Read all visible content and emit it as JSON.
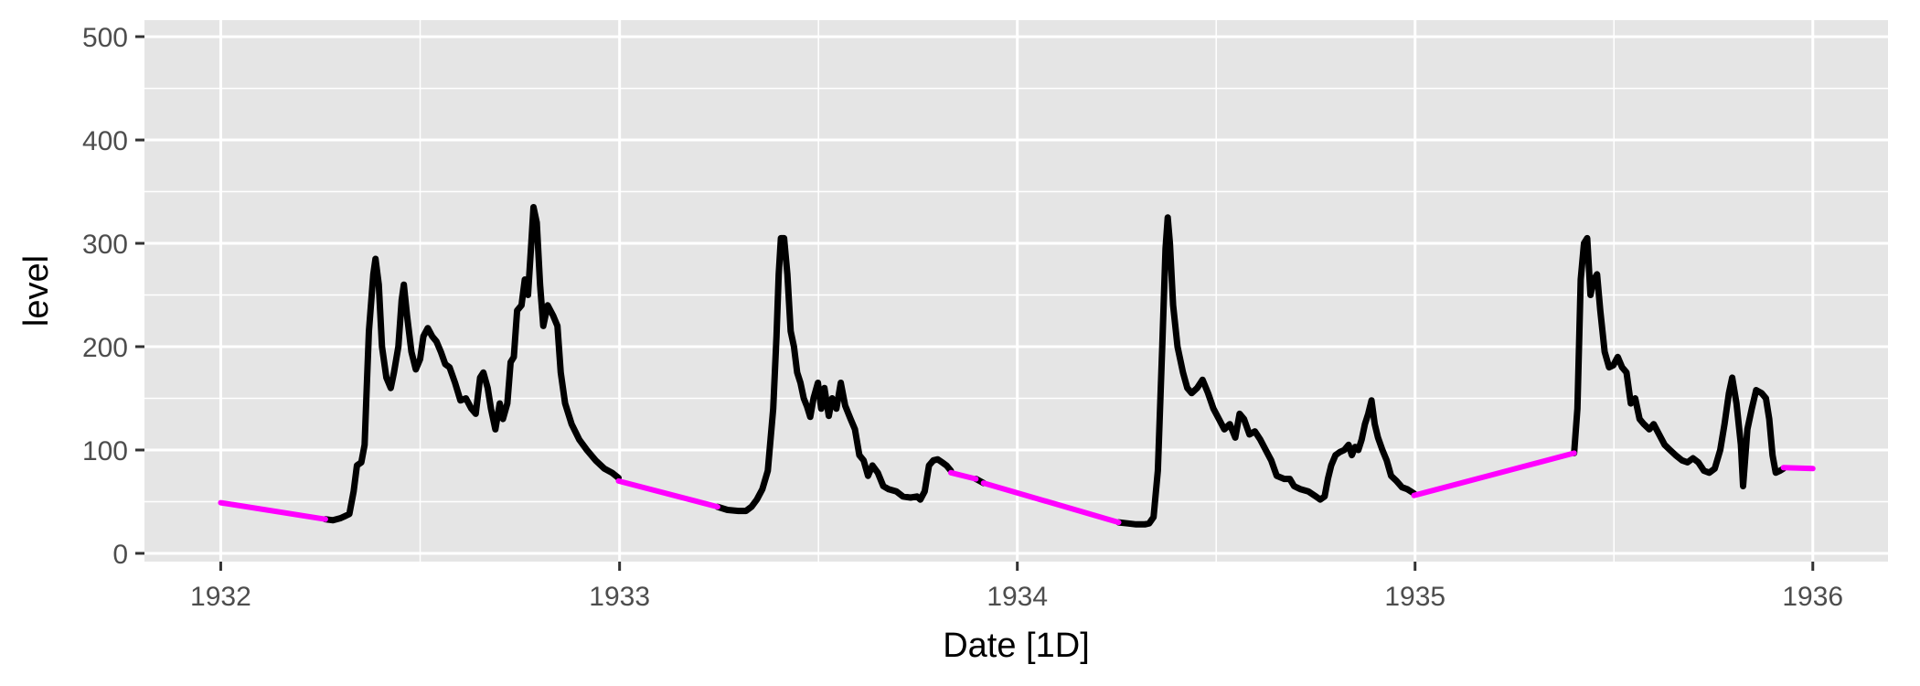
{
  "chart_data": {
    "type": "line",
    "title": "",
    "xlabel": "Date [1D]",
    "ylabel": "level",
    "x_range": [
      "1931-10-23",
      "1936-03-10"
    ],
    "ylim": [
      -8,
      516
    ],
    "x_ticks": [
      {
        "date": "1932-01-01",
        "label": "1932"
      },
      {
        "date": "1933-01-01",
        "label": "1933"
      },
      {
        "date": "1934-01-01",
        "label": "1934"
      },
      {
        "date": "1935-01-01",
        "label": "1935"
      },
      {
        "date": "1936-01-01",
        "label": "1936"
      }
    ],
    "y_ticks": [
      0,
      100,
      200,
      300,
      400,
      500
    ],
    "grid": true,
    "legend": "none",
    "background": "#e5e5e5",
    "grid_color": "#ffffff",
    "series": [
      {
        "color": "#000000",
        "line_width_note": "thick",
        "segments": [
          [
            [
              "1932-04-06",
              33
            ],
            [
              "1932-04-13",
              32
            ],
            [
              "1932-04-20",
              34
            ],
            [
              "1932-04-24",
              36
            ],
            [
              "1932-04-28",
              38
            ],
            [
              "1932-05-02",
              60
            ],
            [
              "1932-05-05",
              85
            ],
            [
              "1932-05-09",
              88
            ],
            [
              "1932-05-12",
              105
            ],
            [
              "1932-05-14",
              160
            ],
            [
              "1932-05-16",
              215
            ],
            [
              "1932-05-20",
              270
            ],
            [
              "1932-05-22",
              285
            ],
            [
              "1932-05-25",
              260
            ],
            [
              "1932-05-28",
              200
            ],
            [
              "1932-06-01",
              170
            ],
            [
              "1932-06-05",
              160
            ],
            [
              "1932-06-08",
              175
            ],
            [
              "1932-06-12",
              200
            ],
            [
              "1932-06-15",
              245
            ],
            [
              "1932-06-17",
              260
            ],
            [
              "1932-06-20",
              230
            ],
            [
              "1932-06-24",
              195
            ],
            [
              "1932-06-28",
              178
            ],
            [
              "1932-07-02",
              188
            ],
            [
              "1932-07-05",
              210
            ],
            [
              "1932-07-09",
              218
            ],
            [
              "1932-07-13",
              210
            ],
            [
              "1932-07-17",
              205
            ],
            [
              "1932-07-21",
              195
            ],
            [
              "1932-07-25",
              183
            ],
            [
              "1932-07-29",
              180
            ],
            [
              "1932-08-03",
              165
            ],
            [
              "1932-08-08",
              148
            ],
            [
              "1932-08-13",
              150
            ],
            [
              "1932-08-18",
              140
            ],
            [
              "1932-08-22",
              135
            ],
            [
              "1932-08-26",
              170
            ],
            [
              "1932-08-29",
              175
            ],
            [
              "1932-09-02",
              160
            ],
            [
              "1932-09-05",
              140
            ],
            [
              "1932-09-09",
              120
            ],
            [
              "1932-09-13",
              145
            ],
            [
              "1932-09-16",
              130
            ],
            [
              "1932-09-20",
              145
            ],
            [
              "1932-09-23",
              185
            ],
            [
              "1932-09-26",
              190
            ],
            [
              "1932-09-29",
              235
            ],
            [
              "1932-10-03",
              240
            ],
            [
              "1932-10-06",
              265
            ],
            [
              "1932-10-09",
              250
            ],
            [
              "1932-10-12",
              300
            ],
            [
              "1932-10-14",
              335
            ],
            [
              "1932-10-17",
              320
            ],
            [
              "1932-10-20",
              260
            ],
            [
              "1932-10-23",
              220
            ],
            [
              "1932-10-27",
              240
            ],
            [
              "1932-11-01",
              230
            ],
            [
              "1932-11-05",
              220
            ],
            [
              "1932-11-08",
              175
            ],
            [
              "1932-11-12",
              145
            ],
            [
              "1932-11-18",
              125
            ],
            [
              "1932-11-25",
              110
            ],
            [
              "1932-12-02",
              100
            ],
            [
              "1932-12-10",
              90
            ],
            [
              "1932-12-18",
              82
            ],
            [
              "1932-12-25",
              78
            ],
            [
              "1932-12-31",
              73
            ]
          ],
          [
            [
              "1933-04-01",
              45
            ],
            [
              "1933-04-10",
              42
            ],
            [
              "1933-04-20",
              41
            ],
            [
              "1933-04-27",
              41
            ],
            [
              "1933-05-02",
              45
            ],
            [
              "1933-05-07",
              52
            ],
            [
              "1933-05-12",
              62
            ],
            [
              "1933-05-17",
              80
            ],
            [
              "1933-05-22",
              140
            ],
            [
              "1933-05-25",
              210
            ],
            [
              "1933-05-27",
              270
            ],
            [
              "1933-05-29",
              305
            ],
            [
              "1933-06-01",
              305
            ],
            [
              "1933-06-04",
              270
            ],
            [
              "1933-06-07",
              215
            ],
            [
              "1933-06-10",
              200
            ],
            [
              "1933-06-13",
              175
            ],
            [
              "1933-06-16",
              165
            ],
            [
              "1933-06-19",
              150
            ],
            [
              "1933-06-22",
              142
            ],
            [
              "1933-06-25",
              132
            ],
            [
              "1933-06-28",
              150
            ],
            [
              "1933-07-02",
              165
            ],
            [
              "1933-07-05",
              140
            ],
            [
              "1933-07-08",
              160
            ],
            [
              "1933-07-12",
              133
            ],
            [
              "1933-07-15",
              150
            ],
            [
              "1933-07-19",
              140
            ],
            [
              "1933-07-23",
              165
            ],
            [
              "1933-07-27",
              143
            ],
            [
              "1933-08-01",
              130
            ],
            [
              "1933-08-05",
              120
            ],
            [
              "1933-08-09",
              95
            ],
            [
              "1933-08-13",
              90
            ],
            [
              "1933-08-17",
              75
            ],
            [
              "1933-08-21",
              85
            ],
            [
              "1933-08-26",
              78
            ],
            [
              "1933-08-31",
              65
            ],
            [
              "1933-09-05",
              62
            ],
            [
              "1933-09-12",
              60
            ],
            [
              "1933-09-18",
              55
            ],
            [
              "1933-09-25",
              54
            ],
            [
              "1933-10-01",
              55
            ],
            [
              "1933-10-04",
              52
            ],
            [
              "1933-10-08",
              60
            ],
            [
              "1933-10-12",
              85
            ],
            [
              "1933-10-16",
              90
            ],
            [
              "1933-10-20",
              91
            ],
            [
              "1933-10-24",
              88
            ],
            [
              "1933-10-28",
              85
            ],
            [
              "1933-11-01",
              80
            ]
          ],
          [
            [
              "1933-11-24",
              72
            ],
            [
              "1933-12-01",
              68
            ]
          ],
          [
            [
              "1934-04-04",
              30
            ],
            [
              "1934-04-12",
              29
            ],
            [
              "1934-04-20",
              28
            ],
            [
              "1934-04-28",
              28
            ],
            [
              "1934-05-02",
              29
            ],
            [
              "1934-05-06",
              35
            ],
            [
              "1934-05-10",
              80
            ],
            [
              "1934-05-14",
              200
            ],
            [
              "1934-05-17",
              295
            ],
            [
              "1934-05-19",
              325
            ],
            [
              "1934-05-21",
              300
            ],
            [
              "1934-05-24",
              240
            ],
            [
              "1934-05-28",
              200
            ],
            [
              "1934-06-02",
              175
            ],
            [
              "1934-06-06",
              160
            ],
            [
              "1934-06-10",
              155
            ],
            [
              "1934-06-15",
              160
            ],
            [
              "1934-06-20",
              168
            ],
            [
              "1934-06-25",
              155
            ],
            [
              "1934-06-30",
              140
            ],
            [
              "1934-07-05",
              130
            ],
            [
              "1934-07-10",
              120
            ],
            [
              "1934-07-15",
              125
            ],
            [
              "1934-07-20",
              112
            ],
            [
              "1934-07-24",
              135
            ],
            [
              "1934-07-28",
              130
            ],
            [
              "1934-08-02",
              115
            ],
            [
              "1934-08-07",
              118
            ],
            [
              "1934-08-12",
              110
            ],
            [
              "1934-08-17",
              100
            ],
            [
              "1934-08-22",
              90
            ],
            [
              "1934-08-27",
              75
            ],
            [
              "1934-09-03",
              72
            ],
            [
              "1934-09-08",
              72
            ],
            [
              "1934-09-12",
              65
            ],
            [
              "1934-09-18",
              62
            ],
            [
              "1934-09-25",
              60
            ],
            [
              "1934-10-02",
              55
            ],
            [
              "1934-10-06",
              52
            ],
            [
              "1934-10-10",
              55
            ],
            [
              "1934-10-13",
              72
            ],
            [
              "1934-10-16",
              85
            ],
            [
              "1934-10-20",
              95
            ],
            [
              "1934-10-24",
              98
            ],
            [
              "1934-10-28",
              100
            ],
            [
              "1934-11-01",
              105
            ],
            [
              "1934-11-04",
              95
            ],
            [
              "1934-11-07",
              103
            ],
            [
              "1934-11-10",
              100
            ],
            [
              "1934-11-13",
              110
            ],
            [
              "1934-11-16",
              125
            ],
            [
              "1934-11-19",
              135
            ],
            [
              "1934-11-22",
              148
            ],
            [
              "1934-11-25",
              125
            ],
            [
              "1934-11-28",
              112
            ],
            [
              "1934-12-02",
              100
            ],
            [
              "1934-12-06",
              90
            ],
            [
              "1934-12-10",
              75
            ],
            [
              "1934-12-15",
              70
            ],
            [
              "1934-12-20",
              64
            ],
            [
              "1934-12-25",
              62
            ],
            [
              "1934-12-31",
              58
            ]
          ],
          [
            [
              "1935-05-27",
              97
            ],
            [
              "1935-05-30",
              140
            ],
            [
              "1935-06-02",
              265
            ],
            [
              "1935-06-05",
              300
            ],
            [
              "1935-06-08",
              305
            ],
            [
              "1935-06-11",
              250
            ],
            [
              "1935-06-14",
              265
            ],
            [
              "1935-06-17",
              270
            ],
            [
              "1935-06-20",
              235
            ],
            [
              "1935-06-24",
              195
            ],
            [
              "1935-06-28",
              180
            ],
            [
              "1935-07-02",
              182
            ],
            [
              "1935-07-06",
              190
            ],
            [
              "1935-07-10",
              180
            ],
            [
              "1935-07-14",
              175
            ],
            [
              "1935-07-18",
              145
            ],
            [
              "1935-07-22",
              150
            ],
            [
              "1935-07-26",
              130
            ],
            [
              "1935-07-30",
              125
            ],
            [
              "1935-08-04",
              120
            ],
            [
              "1935-08-08",
              125
            ],
            [
              "1935-08-13",
              115
            ],
            [
              "1935-08-18",
              105
            ],
            [
              "1935-08-23",
              100
            ],
            [
              "1935-08-28",
              95
            ],
            [
              "1935-09-03",
              90
            ],
            [
              "1935-09-08",
              88
            ],
            [
              "1935-09-13",
              92
            ],
            [
              "1935-09-18",
              88
            ],
            [
              "1935-09-23",
              80
            ],
            [
              "1935-09-28",
              78
            ],
            [
              "1935-10-03",
              82
            ],
            [
              "1935-10-08",
              100
            ],
            [
              "1935-10-12",
              125
            ],
            [
              "1935-10-16",
              155
            ],
            [
              "1935-10-19",
              170
            ],
            [
              "1935-10-23",
              145
            ],
            [
              "1935-10-27",
              105
            ],
            [
              "1935-10-29",
              65
            ],
            [
              "1935-11-02",
              120
            ],
            [
              "1935-11-06",
              140
            ],
            [
              "1935-11-10",
              158
            ],
            [
              "1935-11-15",
              155
            ],
            [
              "1935-11-19",
              150
            ],
            [
              "1935-11-22",
              130
            ],
            [
              "1935-11-25",
              95
            ],
            [
              "1935-11-28",
              78
            ],
            [
              "1935-12-02",
              80
            ],
            [
              "1935-12-05",
              82
            ]
          ]
        ]
      },
      {
        "color": "#ff00ff",
        "segments": [
          [
            [
              "1932-01-01",
              49
            ],
            [
              "1932-04-06",
              33
            ]
          ],
          [
            [
              "1932-12-31",
              70
            ],
            [
              "1933-04-01",
              45
            ]
          ],
          [
            [
              "1933-11-01",
              78
            ],
            [
              "1933-11-24",
              72
            ]
          ],
          [
            [
              "1933-12-01",
              68
            ],
            [
              "1934-04-04",
              30
            ]
          ],
          [
            [
              "1934-12-31",
              56
            ],
            [
              "1935-05-27",
              97
            ]
          ],
          [
            [
              "1935-12-05",
              83
            ],
            [
              "1936-01-01",
              82
            ]
          ]
        ]
      }
    ]
  }
}
